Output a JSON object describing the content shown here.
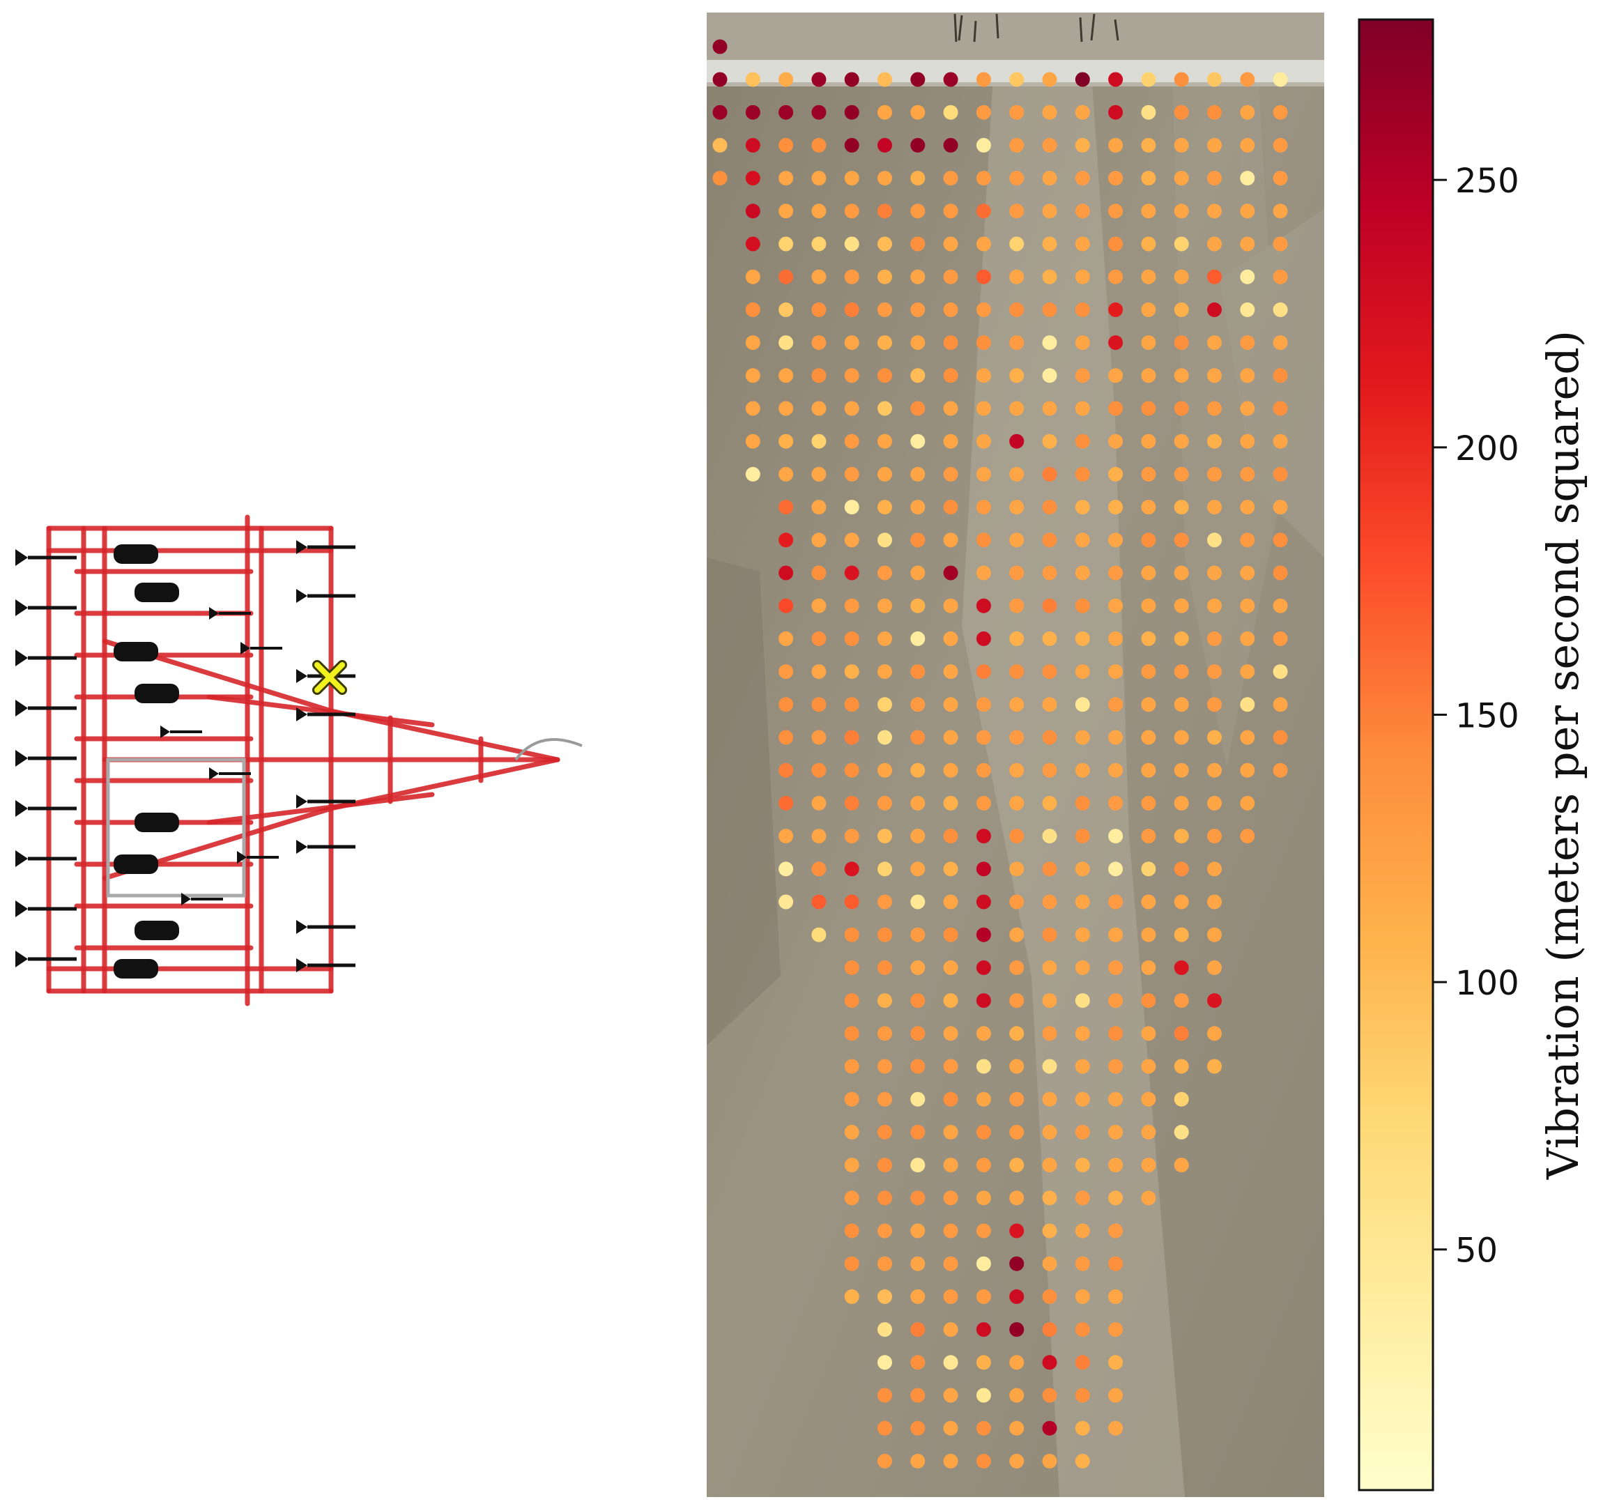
{
  "chart_data": {
    "type": "scatter",
    "colorbar": {
      "label": "Vibration (meters per second squared)",
      "range": [
        5,
        280
      ],
      "ticks": [
        50,
        100,
        150,
        200,
        250
      ],
      "tick_labels": [
        "50",
        "100",
        "150",
        "200",
        "250"
      ],
      "colormap": [
        "#ffffcc",
        "#ffeda0",
        "#fed976",
        "#feb24c",
        "#fd8d3c",
        "#fc4e2a",
        "#e31a1c",
        "#bd0026",
        "#800026"
      ],
      "orientation": "vertical",
      "placement": "right"
    },
    "grid": false,
    "background": "aerial field imagery",
    "implement": {
      "marker": "yellow-x",
      "frame_color": "#d6262b"
    },
    "columns": 18,
    "column_values": [
      [
        270,
        265,
        100,
        140
      ],
      [
        95,
        265,
        230,
        225,
        235,
        225,
        120,
        140,
        120,
        120,
        120,
        120,
        40
      ],
      [
        115,
        265,
        140,
        120,
        120,
        80,
        160,
        90,
        60,
        120,
        120,
        110,
        120,
        160,
        210,
        230,
        180,
        120,
        130,
        140,
        140,
        150,
        160,
        120,
        40,
        50
      ],
      [
        265,
        265,
        140,
        120,
        120,
        80,
        120,
        140,
        130,
        140,
        120,
        80,
        120,
        120,
        120,
        140,
        120,
        140,
        120,
        140,
        130,
        140,
        120,
        120,
        140,
        170,
        70
      ],
      [
        270,
        270,
        270,
        120,
        130,
        60,
        130,
        150,
        120,
        130,
        120,
        130,
        130,
        40,
        120,
        220,
        130,
        140,
        110,
        140,
        150,
        140,
        150,
        130,
        220,
        170,
        140,
        140,
        140,
        140,
        130,
        130,
        120,
        120,
        130,
        140,
        140,
        110
      ],
      [
        100,
        120,
        240,
        120,
        150,
        100,
        110,
        130,
        110,
        140,
        90,
        120,
        120,
        110,
        60,
        130,
        120,
        120,
        120,
        80,
        60,
        120,
        130,
        100,
        80,
        130,
        140,
        140,
        110,
        130,
        130,
        130,
        140,
        140,
        140,
        130,
        130,
        100,
        60,
        40,
        140,
        140,
        130,
        120,
        150,
        110,
        130,
        140,
        60,
        140,
        140,
        140,
        110,
        270
      ],
      [
        270,
        120,
        270,
        110,
        130,
        140,
        120,
        130,
        120,
        100,
        140,
        40,
        120,
        120,
        140,
        120,
        110,
        40,
        140,
        130,
        140,
        110,
        120,
        120,
        120,
        50,
        130,
        120,
        140,
        140,
        140,
        50,
        140,
        50,
        140,
        120,
        120,
        120,
        150,
        140,
        140,
        140,
        120,
        50,
        140,
        140,
        120,
        140,
        40
      ],
      [
        265,
        70,
        270,
        130,
        130,
        120,
        130,
        130,
        140,
        140,
        120,
        120,
        130,
        140,
        120,
        260,
        120,
        120,
        120,
        120,
        120,
        120,
        110,
        140,
        110,
        120,
        140,
        120,
        110,
        120,
        130,
        140,
        120,
        120,
        130,
        130,
        130,
        130,
        120,
        50,
        120,
        120,
        120,
        140,
        120,
        140,
        120,
        120,
        130,
        140,
        110,
        230
      ],
      [
        130,
        130,
        40,
        130,
        160,
        120,
        170,
        130,
        140,
        120,
        120,
        120,
        120,
        130,
        140,
        120,
        230,
        230,
        150,
        130,
        130,
        130,
        130,
        230,
        240,
        230,
        250,
        230,
        230,
        120,
        60,
        120,
        140,
        130,
        120,
        130,
        40,
        130,
        230,
        110,
        50,
        140,
        140,
        130,
        130
      ],
      [
        90,
        130,
        130,
        130,
        130,
        80,
        120,
        140,
        130,
        110,
        120,
        240,
        120,
        120,
        120,
        130,
        130,
        110,
        140,
        120,
        130,
        120,
        120,
        140,
        120,
        130,
        120,
        130,
        130,
        110,
        120,
        130,
        130,
        110,
        120,
        220,
        270,
        230,
        270,
        120,
        120,
        120,
        120,
        140,
        120,
        130,
        120
      ],
      [
        120,
        120,
        130,
        120,
        120,
        110,
        110,
        140,
        40,
        40,
        120,
        110,
        150,
        140,
        140,
        130,
        150,
        110,
        140,
        120,
        140,
        130,
        110,
        60,
        140,
        130,
        140,
        120,
        120,
        130,
        60,
        120,
        120,
        120,
        110,
        110,
        120,
        140,
        150,
        230,
        140,
        250,
        120,
        120,
        240,
        130
      ],
      [
        280,
        120,
        110,
        130,
        130,
        120,
        120,
        140,
        120,
        130,
        120,
        140,
        140,
        110,
        120,
        120,
        140,
        110,
        120,
        50,
        120,
        120,
        140,
        140,
        120,
        120,
        120,
        120,
        60,
        120,
        120,
        120,
        130,
        110,
        130,
        120,
        130,
        120,
        140,
        150,
        140,
        110,
        110,
        130,
        80,
        120
      ],
      [
        230,
        230,
        120,
        130,
        130,
        140,
        130,
        210,
        220,
        120,
        140,
        120,
        110,
        110,
        120,
        130,
        120,
        120,
        120,
        130,
        120,
        120,
        130,
        40,
        40,
        130,
        120,
        130,
        130,
        140,
        130,
        120,
        120,
        120,
        110,
        130,
        140,
        120,
        130,
        110,
        120,
        120
      ],
      [
        80,
        60,
        110,
        110,
        120,
        110,
        120,
        120,
        120,
        120,
        140,
        120,
        130,
        120,
        140,
        120,
        120,
        110,
        130,
        120,
        120,
        120,
        130,
        130,
        80,
        120,
        120,
        120,
        140,
        120,
        120,
        120,
        120,
        120,
        120
      ],
      [
        140,
        140,
        120,
        120,
        120,
        80,
        120,
        110,
        140,
        120,
        140,
        120,
        130,
        110,
        140,
        120,
        120,
        110,
        130,
        120,
        120,
        120,
        120,
        110,
        140,
        120,
        110,
        220,
        130,
        150,
        110,
        80,
        60,
        120
      ],
      [
        90,
        140,
        120,
        130,
        120,
        120,
        170,
        230,
        120,
        120,
        130,
        110,
        130,
        120,
        60,
        120,
        120,
        130,
        130,
        130,
        110,
        120,
        120,
        130,
        120,
        120,
        120,
        120,
        220,
        120,
        110
      ],
      [
        130,
        120,
        120,
        40,
        120,
        120,
        40,
        50,
        130,
        120,
        120,
        120,
        130,
        120,
        130,
        120,
        120,
        120,
        120,
        60,
        120,
        120,
        120,
        130
      ],
      [
        40,
        130,
        130,
        130,
        120,
        130,
        130,
        60,
        120,
        140,
        140,
        120,
        140,
        120,
        140,
        140,
        120,
        130,
        60,
        120,
        140,
        130
      ]
    ]
  }
}
